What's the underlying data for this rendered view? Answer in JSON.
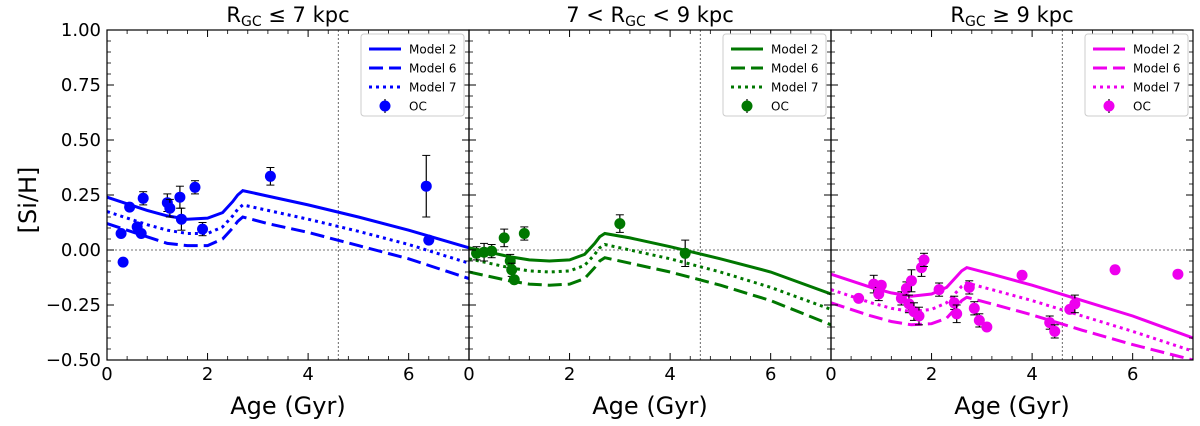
{
  "figure": {
    "ylabel": "[Si/H]",
    "xlabel": "Age (Gyr)"
  },
  "chart_data": [
    {
      "type": "line",
      "title": "R_GC ≤ 7 kpc",
      "title_main": "R",
      "title_sub": "GC",
      "title_tail": " ≤ 7 kpc",
      "title_head": "",
      "color": "#0000ff",
      "xlabel": "Age (Gyr)",
      "ylabel": "[Si/H]",
      "xlim": [
        0,
        7.2
      ],
      "ylim": [
        -0.5,
        1.0
      ],
      "xticks": [
        0,
        2,
        4,
        6
      ],
      "yticks": [
        -0.5,
        -0.25,
        0.0,
        0.25,
        0.5,
        0.75,
        1.0
      ],
      "ytick_labels": [
        "−0.50",
        "−0.25",
        "0.00",
        "0.25",
        "0.50",
        "0.75",
        "1.00"
      ],
      "vline": 4.6,
      "hline": 0.0,
      "legend_position": "top-right",
      "series": [
        {
          "name": "Model 2",
          "style": "solid",
          "x": [
            0,
            0.4,
            0.8,
            1.2,
            1.6,
            2.0,
            2.3,
            2.5,
            2.6,
            2.7,
            3.2,
            4.0,
            5.0,
            6.0,
            7.2
          ],
          "y": [
            0.24,
            0.21,
            0.18,
            0.155,
            0.14,
            0.145,
            0.17,
            0.22,
            0.25,
            0.27,
            0.245,
            0.205,
            0.15,
            0.09,
            0.01
          ]
        },
        {
          "name": "Model 6",
          "style": "dashed",
          "x": [
            0,
            0.4,
            0.8,
            1.2,
            1.6,
            2.0,
            2.3,
            2.5,
            2.6,
            2.7,
            3.2,
            4.0,
            5.0,
            6.0,
            7.2
          ],
          "y": [
            0.12,
            0.09,
            0.06,
            0.03,
            0.02,
            0.02,
            0.05,
            0.1,
            0.13,
            0.15,
            0.12,
            0.08,
            0.02,
            -0.04,
            -0.13
          ]
        },
        {
          "name": "Model 7",
          "style": "dotted",
          "x": [
            0,
            0.4,
            0.8,
            1.2,
            1.6,
            2.0,
            2.3,
            2.5,
            2.6,
            2.7,
            3.2,
            4.0,
            5.0,
            6.0,
            7.2
          ],
          "y": [
            0.175,
            0.145,
            0.115,
            0.09,
            0.075,
            0.075,
            0.105,
            0.155,
            0.185,
            0.205,
            0.18,
            0.14,
            0.085,
            0.025,
            -0.06
          ]
        }
      ],
      "oc": {
        "name": "OC",
        "points": [
          {
            "x": 0.28,
            "y": 0.075,
            "err": 0.0
          },
          {
            "x": 0.32,
            "y": -0.055,
            "err": 0.0
          },
          {
            "x": 0.45,
            "y": 0.195,
            "err": 0.0
          },
          {
            "x": 0.6,
            "y": 0.105,
            "err": 0.0
          },
          {
            "x": 0.68,
            "y": 0.075,
            "err": 0.0
          },
          {
            "x": 0.72,
            "y": 0.235,
            "err": 0.03
          },
          {
            "x": 1.2,
            "y": 0.215,
            "err": 0.04
          },
          {
            "x": 1.25,
            "y": 0.19,
            "err": 0.04
          },
          {
            "x": 1.45,
            "y": 0.24,
            "err": 0.05
          },
          {
            "x": 1.48,
            "y": 0.14,
            "err": 0.05
          },
          {
            "x": 1.75,
            "y": 0.285,
            "err": 0.03
          },
          {
            "x": 1.9,
            "y": 0.095,
            "err": 0.03
          },
          {
            "x": 3.25,
            "y": 0.335,
            "err": 0.04
          },
          {
            "x": 6.35,
            "y": 0.29,
            "err": 0.14
          },
          {
            "x": 6.4,
            "y": 0.045,
            "err": 0.0
          }
        ]
      }
    },
    {
      "type": "line",
      "title": "7 < R_GC < 9 kpc",
      "title_head": "7 < ",
      "title_main": "R",
      "title_sub": "GC",
      "title_tail": " < 9 kpc",
      "color": "#007700",
      "xlabel": "Age (Gyr)",
      "ylabel": "",
      "xlim": [
        0,
        7.2
      ],
      "ylim": [
        -0.5,
        1.0
      ],
      "xticks": [
        0,
        2,
        4,
        6
      ],
      "yticks": [
        -0.5,
        -0.25,
        0.0,
        0.25,
        0.5,
        0.75,
        1.0
      ],
      "vline": 4.6,
      "hline": 0.0,
      "legend_position": "top-right",
      "series": [
        {
          "name": "Model 2",
          "style": "solid",
          "x": [
            0,
            0.4,
            0.8,
            1.2,
            1.6,
            2.0,
            2.3,
            2.5,
            2.6,
            2.7,
            3.2,
            4.0,
            5.0,
            6.0,
            7.2
          ],
          "y": [
            0.01,
            -0.01,
            -0.03,
            -0.045,
            -0.05,
            -0.045,
            -0.02,
            0.03,
            0.06,
            0.075,
            0.055,
            0.015,
            -0.04,
            -0.1,
            -0.2
          ]
        },
        {
          "name": "Model 6",
          "style": "dashed",
          "x": [
            0,
            0.4,
            0.8,
            1.2,
            1.6,
            2.0,
            2.3,
            2.5,
            2.6,
            2.7,
            3.2,
            4.0,
            5.0,
            6.0,
            7.2
          ],
          "y": [
            -0.1,
            -0.12,
            -0.14,
            -0.155,
            -0.16,
            -0.155,
            -0.13,
            -0.08,
            -0.05,
            -0.035,
            -0.06,
            -0.1,
            -0.16,
            -0.23,
            -0.34
          ]
        },
        {
          "name": "Model 7",
          "style": "dotted",
          "x": [
            0,
            0.4,
            0.8,
            1.2,
            1.6,
            2.0,
            2.3,
            2.5,
            2.6,
            2.7,
            3.2,
            4.0,
            5.0,
            6.0,
            7.2
          ],
          "y": [
            -0.04,
            -0.06,
            -0.08,
            -0.095,
            -0.1,
            -0.095,
            -0.07,
            -0.02,
            0.01,
            0.025,
            0.0,
            -0.04,
            -0.1,
            -0.17,
            -0.27
          ]
        }
      ],
      "oc": {
        "name": "OC",
        "points": [
          {
            "x": 0.15,
            "y": -0.015,
            "err": 0.03
          },
          {
            "x": 0.3,
            "y": -0.01,
            "err": 0.04
          },
          {
            "x": 0.45,
            "y": -0.005,
            "err": 0.03
          },
          {
            "x": 0.7,
            "y": 0.055,
            "err": 0.04
          },
          {
            "x": 0.82,
            "y": -0.05,
            "err": 0.03
          },
          {
            "x": 0.85,
            "y": -0.09,
            "err": 0.03
          },
          {
            "x": 0.9,
            "y": -0.135,
            "err": 0.0
          },
          {
            "x": 1.1,
            "y": 0.075,
            "err": 0.03
          },
          {
            "x": 3.0,
            "y": 0.12,
            "err": 0.04
          },
          {
            "x": 4.3,
            "y": -0.015,
            "err": 0.06
          }
        ]
      }
    },
    {
      "type": "line",
      "title": "R_GC ≥ 9 kpc",
      "title_head": "",
      "title_main": "R",
      "title_sub": "GC",
      "title_tail": " ≥ 9 kpc",
      "color": "#ee00ee",
      "xlabel": "Age (Gyr)",
      "ylabel": "",
      "xlim": [
        0,
        7.2
      ],
      "ylim": [
        -0.5,
        1.0
      ],
      "xticks": [
        0,
        2,
        4,
        6
      ],
      "yticks": [
        -0.5,
        -0.25,
        0.0,
        0.25,
        0.5,
        0.75,
        1.0
      ],
      "vline": 4.6,
      "hline": 0.0,
      "legend_position": "top-right",
      "series": [
        {
          "name": "Model 2",
          "style": "solid",
          "x": [
            0,
            0.4,
            0.8,
            1.2,
            1.6,
            2.0,
            2.3,
            2.5,
            2.6,
            2.7,
            3.2,
            4.0,
            5.0,
            6.0,
            7.2
          ],
          "y": [
            -0.11,
            -0.14,
            -0.17,
            -0.195,
            -0.21,
            -0.2,
            -0.17,
            -0.12,
            -0.095,
            -0.08,
            -0.11,
            -0.16,
            -0.23,
            -0.3,
            -0.4
          ]
        },
        {
          "name": "Model 6",
          "style": "dashed",
          "x": [
            0,
            0.4,
            0.8,
            1.2,
            1.6,
            2.0,
            2.3,
            2.5,
            2.6,
            2.7,
            3.2,
            4.0,
            5.0,
            6.0,
            7.2
          ],
          "y": [
            -0.24,
            -0.27,
            -0.3,
            -0.325,
            -0.34,
            -0.335,
            -0.31,
            -0.26,
            -0.23,
            -0.215,
            -0.245,
            -0.295,
            -0.365,
            -0.43,
            -0.5
          ]
        },
        {
          "name": "Model 7",
          "style": "dotted",
          "x": [
            0,
            0.4,
            0.8,
            1.2,
            1.6,
            2.0,
            2.3,
            2.5,
            2.6,
            2.7,
            3.2,
            4.0,
            5.0,
            6.0,
            7.2
          ],
          "y": [
            -0.18,
            -0.21,
            -0.24,
            -0.265,
            -0.28,
            -0.27,
            -0.24,
            -0.19,
            -0.165,
            -0.15,
            -0.18,
            -0.23,
            -0.3,
            -0.37,
            -0.46
          ]
        }
      ],
      "oc": {
        "name": "OC",
        "points": [
          {
            "x": 0.55,
            "y": -0.22,
            "err": 0.0
          },
          {
            "x": 0.85,
            "y": -0.155,
            "err": 0.04
          },
          {
            "x": 0.95,
            "y": -0.2,
            "err": 0.03
          },
          {
            "x": 1.0,
            "y": -0.16,
            "err": 0.0
          },
          {
            "x": 1.4,
            "y": -0.22,
            "err": 0.03
          },
          {
            "x": 1.5,
            "y": -0.175,
            "err": 0.03
          },
          {
            "x": 1.55,
            "y": -0.245,
            "err": 0.04
          },
          {
            "x": 1.6,
            "y": -0.14,
            "err": 0.05
          },
          {
            "x": 1.65,
            "y": -0.28,
            "err": 0.04
          },
          {
            "x": 1.75,
            "y": -0.3,
            "err": 0.04
          },
          {
            "x": 1.8,
            "y": -0.08,
            "err": 0.04
          },
          {
            "x": 1.85,
            "y": -0.045,
            "err": 0.03
          },
          {
            "x": 2.15,
            "y": -0.18,
            "err": 0.03
          },
          {
            "x": 2.45,
            "y": -0.24,
            "err": 0.03
          },
          {
            "x": 2.5,
            "y": -0.29,
            "err": 0.04
          },
          {
            "x": 2.75,
            "y": -0.17,
            "err": 0.03
          },
          {
            "x": 2.85,
            "y": -0.265,
            "err": 0.03
          },
          {
            "x": 2.95,
            "y": -0.32,
            "err": 0.03
          },
          {
            "x": 3.1,
            "y": -0.35,
            "err": 0.0
          },
          {
            "x": 3.8,
            "y": -0.115,
            "err": 0.0
          },
          {
            "x": 4.35,
            "y": -0.33,
            "err": 0.03
          },
          {
            "x": 4.45,
            "y": -0.37,
            "err": 0.03
          },
          {
            "x": 4.75,
            "y": -0.27,
            "err": 0.0
          },
          {
            "x": 4.85,
            "y": -0.245,
            "err": 0.04
          },
          {
            "x": 5.65,
            "y": -0.09,
            "err": 0.0
          },
          {
            "x": 6.9,
            "y": -0.11,
            "err": 0.0
          }
        ]
      }
    }
  ]
}
